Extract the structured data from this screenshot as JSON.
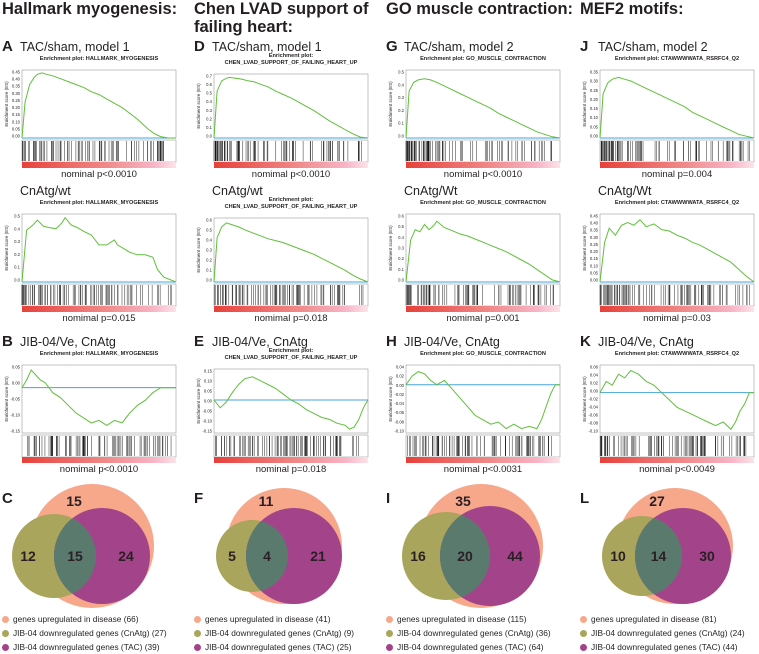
{
  "colors": {
    "es_line": "#5fbf3a",
    "zero_line": "#4aa3d8",
    "bar_red": "#e8403a",
    "bar_pink": "#f7b4c5",
    "venn_disease": "#f7a88a",
    "venn_cnatg": "#a9a55c",
    "venn_tac": "#a3438a",
    "venn_overlap": "#5b7a6e",
    "text": "#231f20"
  },
  "columns": [
    {
      "title": "Hallmark myogenesis:",
      "panels": [
        {
          "letter": "A",
          "subtitle": "TAC/sham, model 1",
          "plot_title": "Enrichment plot: HALLMARK_MYOGENESIS",
          "y_axis": "Enrichment score (ES)",
          "yticks": [
            "0.45",
            "0.40",
            "0.35",
            "0.30",
            "0.25",
            "0.20",
            "0.15",
            "0.10",
            "0.05",
            "0.00"
          ],
          "pvalue": "nominal p<0.0010"
        },
        {
          "letter": "",
          "subtitle": "CnAtg/wt",
          "plot_title": "Enrichment plot: HALLMARK_MYOGENESIS",
          "y_axis": "Enrichment score (ES)",
          "yticks": [
            "0.5",
            "0.4",
            "0.3",
            "0.2",
            "0.1",
            "0.0"
          ],
          "pvalue": "nomimal p=0.015"
        },
        {
          "letter": "B",
          "subtitle": "JIB-04/Ve, CnAtg",
          "plot_title": "Enrichment plot: HALLMARK_MYOGENESIS",
          "y_axis": "Enrichment score (ES)",
          "yticks": [
            "0.05",
            "0.00",
            "-0.05",
            "-0.10",
            "-0.15"
          ],
          "pvalue": "nomimal p<0.0010"
        }
      ],
      "venn": {
        "letter": "C",
        "only_disease": "15",
        "only_cnatg": "12",
        "triple": "15",
        "tac": "24"
      },
      "legend": [
        "genes upregulated in disease (66)",
        "JIB-04 downregulated genes (CnAtg) (27)",
        "JIB-04 downregulated genes (TAC) (39)"
      ]
    },
    {
      "title": "Chen LVAD support of\nfailing heart:",
      "panels": [
        {
          "letter": "D",
          "subtitle": "TAC/sham, model 1",
          "plot_title": "Enrichment plot:\nCHEN_LVAD_SUPPORT_OF_FAILING_HEART_UP",
          "y_axis": "Enrichment score (ES)",
          "yticks": [
            "0.7",
            "0.6",
            "0.5",
            "0.4",
            "0.3",
            "0.2",
            "0.1",
            "0.0"
          ],
          "pvalue": "nomimal p<0.0010"
        },
        {
          "letter": "",
          "subtitle": "CnAtg/wt",
          "plot_title": "Enrichment plot:\nCHEN_LVAD_SUPPORT_OF_FAILING_HEART_UP",
          "y_axis": "Enrichment score (ES)",
          "yticks": [
            "0.6",
            "0.5",
            "0.4",
            "0.3",
            "0.2",
            "0.1",
            "0.0"
          ],
          "pvalue": "nomimal p=0.018"
        },
        {
          "letter": "E",
          "subtitle": "JIB-04/Ve, CnAtg",
          "plot_title": "Enrichment plot:\nCHEN_LVAD_SUPPORT_OF_FAILING_HEART_UP",
          "y_axis": "Enrichment score (ES)",
          "yticks": [
            "0.15",
            "0.10",
            "0.05",
            "0.00",
            "-0.05",
            "-0.10",
            "-0.15"
          ],
          "pvalue": "nominal p=0.018"
        }
      ],
      "venn": {
        "letter": "F",
        "only_disease": "11",
        "only_cnatg": "5",
        "triple": "4",
        "tac": "21"
      },
      "legend": [
        "genes upregulated in disease (41)",
        "JIB-04 downregulated genes (CnAtg) (9)",
        "JIB-04 downregulated genes (TAC) (25)"
      ]
    },
    {
      "title": "GO muscle contraction:",
      "panels": [
        {
          "letter": "G",
          "subtitle": "TAC/sham, model 2",
          "plot_title": "Enrichment plot: GO_MUSCLE_CONTRACTION",
          "y_axis": "Enrichment score (ES)",
          "yticks": [
            "0.5",
            "0.4",
            "0.3",
            "0.2",
            "0.1",
            "0.0"
          ],
          "pvalue": "nomimal p<0.0010"
        },
        {
          "letter": "",
          "subtitle": "CnAtg/Wt",
          "plot_title": "Enrichment plot: GO_MUSCLE_CONTRACTION",
          "y_axis": "Enrichment score (ES)",
          "yticks": [
            "0.6",
            "0.5",
            "0.4",
            "0.3",
            "0.2",
            "0.1",
            "0.0"
          ],
          "pvalue": "nomimal p=0.001"
        },
        {
          "letter": "H",
          "subtitle": "JIB-04/Ve, CnAtg",
          "plot_title": "Enrichment plot: GO_MUSCLE_CONTRACTION",
          "y_axis": "Enrichment score (ES)",
          "yticks": [
            "0.04",
            "0.02",
            "0.00",
            "-0.02",
            "-0.04",
            "-0.06",
            "-0.08",
            "-0.10"
          ],
          "pvalue": "nomimal p<0.0031"
        }
      ],
      "venn": {
        "letter": "I",
        "only_disease": "35",
        "only_cnatg": "16",
        "triple": "20",
        "tac": "44"
      },
      "legend": [
        "genes upregulated in disease (115)",
        "JIB-04 downregulated genes (CnAtg) (36)",
        "JIB-04 downregulated genes (TAC) (64)"
      ]
    },
    {
      "title": "MEF2 motifs:",
      "panels": [
        {
          "letter": "J",
          "subtitle": "TAC/sham, model 2",
          "plot_title": "Enrichment plot: CTAWWWWATA_RSRFC4_Q2",
          "y_axis": "Enrichment score (ES)",
          "yticks": [
            "0.35",
            "0.30",
            "0.25",
            "0.20",
            "0.15",
            "0.10",
            "0.05",
            "0.00"
          ],
          "pvalue": "nominal p=0.004"
        },
        {
          "letter": "",
          "subtitle": "CnAtg/Wt",
          "plot_title": "Enrichment plot: CTAWWWWATA_RSRFC4_Q2",
          "y_axis": "Enrichment score (ES)",
          "yticks": [
            "0.45",
            "0.40",
            "0.35",
            "0.30",
            "0.25",
            "0.20",
            "0.15",
            "0.10",
            "0.05",
            "0.00"
          ],
          "pvalue": "nomimal p=0.03"
        },
        {
          "letter": "K",
          "subtitle": "JIB-04/Ve, CnAtg",
          "plot_title": "Enrichment plot: CTAWWWWATA_RSRFC4_Q2",
          "y_axis": "Enrichment score (ES)",
          "yticks": [
            "0.06",
            "0.04",
            "0.02",
            "0.00",
            "-0.02",
            "-0.04",
            "-0.06",
            "-0.08",
            "-0.10"
          ],
          "pvalue": "nominal p<0.0049"
        }
      ],
      "venn": {
        "letter": "L",
        "only_disease": "27",
        "only_cnatg": "10",
        "triple": "14",
        "tac": "30"
      },
      "legend": [
        "genes upregulated in disease (81)",
        "JIB-04 downregulated genes (CnAtg) (24)",
        "JIB-04 downregulated genes (TAC) (44)"
      ]
    }
  ],
  "chart_data": {
    "type": "gsea_enrichment_and_venn",
    "x_range": [
      0,
      1
    ],
    "curves": [
      [
        {
          "es_range": [
            0,
            0.47
          ],
          "xs": [
            0,
            0.02,
            0.05,
            0.08,
            0.1,
            0.13,
            0.16,
            0.2,
            0.25,
            0.3,
            0.35,
            0.4,
            0.45,
            0.5,
            0.55,
            0.6,
            0.65,
            0.7,
            0.75,
            0.78,
            0.82,
            0.86,
            0.9,
            0.95,
            1
          ],
          "es": [
            0,
            0.25,
            0.37,
            0.42,
            0.44,
            0.45,
            0.44,
            0.43,
            0.41,
            0.39,
            0.37,
            0.35,
            0.32,
            0.3,
            0.27,
            0.24,
            0.21,
            0.17,
            0.13,
            0.1,
            0.06,
            0.03,
            0.01,
            0.0,
            0
          ]
        },
        {
          "es_range": [
            0,
            0.55
          ],
          "xs": [
            0,
            0.03,
            0.07,
            0.1,
            0.14,
            0.18,
            0.22,
            0.26,
            0.28,
            0.32,
            0.36,
            0.4,
            0.45,
            0.5,
            0.55,
            0.6,
            0.62,
            0.66,
            0.7,
            0.75,
            0.8,
            0.85,
            0.88,
            0.92,
            1
          ],
          "es": [
            0,
            0.42,
            0.46,
            0.5,
            0.45,
            0.44,
            0.43,
            0.48,
            0.52,
            0.46,
            0.44,
            0.41,
            0.38,
            0.3,
            0.3,
            0.34,
            0.3,
            0.27,
            0.24,
            0.22,
            0.22,
            0.2,
            0.1,
            0.04,
            0
          ]
        },
        {
          "es_range": [
            -0.18,
            0.09
          ],
          "xs": [
            0,
            0.03,
            0.06,
            0.09,
            0.12,
            0.15,
            0.2,
            0.25,
            0.3,
            0.35,
            0.4,
            0.45,
            0.5,
            0.55,
            0.6,
            0.65,
            0.7,
            0.75,
            0.8,
            0.85,
            0.9,
            0.95,
            1
          ],
          "es": [
            0,
            0.03,
            0.07,
            0.05,
            0.03,
            0.02,
            -0.02,
            -0.04,
            -0.07,
            -0.1,
            -0.12,
            -0.14,
            -0.13,
            -0.15,
            -0.13,
            -0.14,
            -0.1,
            -0.07,
            -0.05,
            -0.02,
            0.0,
            0.0,
            0
          ]
        }
      ],
      [
        {
          "es_range": [
            0,
            0.75
          ],
          "xs": [
            0,
            0.02,
            0.05,
            0.08,
            0.1,
            0.14,
            0.18,
            0.22,
            0.26,
            0.3,
            0.35,
            0.4,
            0.45,
            0.5,
            0.55,
            0.6,
            0.65,
            0.7,
            0.75,
            0.8,
            0.85,
            0.9,
            0.95,
            1
          ],
          "es": [
            0,
            0.55,
            0.67,
            0.7,
            0.71,
            0.7,
            0.69,
            0.67,
            0.66,
            0.63,
            0.6,
            0.55,
            0.51,
            0.47,
            0.42,
            0.37,
            0.32,
            0.26,
            0.2,
            0.15,
            0.1,
            0.05,
            0.01,
            0
          ]
        },
        {
          "es_range": [
            0,
            0.65
          ],
          "xs": [
            0,
            0.02,
            0.05,
            0.08,
            0.12,
            0.16,
            0.2,
            0.25,
            0.3,
            0.35,
            0.4,
            0.45,
            0.5,
            0.55,
            0.6,
            0.65,
            0.7,
            0.75,
            0.8,
            0.85,
            0.9,
            0.95,
            1
          ],
          "es": [
            0,
            0.45,
            0.56,
            0.6,
            0.58,
            0.56,
            0.53,
            0.5,
            0.47,
            0.44,
            0.42,
            0.4,
            0.37,
            0.34,
            0.31,
            0.28,
            0.24,
            0.2,
            0.16,
            0.12,
            0.07,
            0.03,
            0
          ]
        },
        {
          "es_range": [
            -0.17,
            0.16
          ],
          "xs": [
            0,
            0.04,
            0.08,
            0.12,
            0.16,
            0.2,
            0.25,
            0.3,
            0.35,
            0.4,
            0.45,
            0.5,
            0.55,
            0.6,
            0.65,
            0.7,
            0.75,
            0.8,
            0.85,
            0.88,
            0.91,
            0.94,
            0.97,
            1
          ],
          "es": [
            0,
            -0.04,
            -0.01,
            0.04,
            0.08,
            0.11,
            0.12,
            0.1,
            0.08,
            0.06,
            0.03,
            0.0,
            -0.02,
            -0.05,
            -0.07,
            -0.09,
            -0.1,
            -0.12,
            -0.13,
            -0.15,
            -0.14,
            -0.1,
            -0.04,
            0
          ]
        }
      ],
      [
        {
          "es_range": [
            0,
            0.55
          ],
          "xs": [
            0,
            0.02,
            0.05,
            0.08,
            0.12,
            0.16,
            0.2,
            0.25,
            0.3,
            0.35,
            0.4,
            0.45,
            0.5,
            0.55,
            0.6,
            0.65,
            0.7,
            0.75,
            0.8,
            0.85,
            0.9,
            0.95,
            1
          ],
          "es": [
            0,
            0.38,
            0.45,
            0.47,
            0.48,
            0.47,
            0.45,
            0.42,
            0.39,
            0.36,
            0.33,
            0.3,
            0.27,
            0.24,
            0.2,
            0.17,
            0.14,
            0.11,
            0.08,
            0.05,
            0.03,
            0.01,
            0
          ]
        },
        {
          "es_range": [
            0,
            0.65
          ],
          "xs": [
            0,
            0.03,
            0.06,
            0.09,
            0.12,
            0.15,
            0.18,
            0.2,
            0.25,
            0.3,
            0.35,
            0.4,
            0.45,
            0.5,
            0.55,
            0.6,
            0.65,
            0.7,
            0.75,
            0.8,
            0.85,
            0.9,
            0.95,
            1
          ],
          "es": [
            0,
            0.4,
            0.5,
            0.48,
            0.55,
            0.5,
            0.54,
            0.58,
            0.52,
            0.49,
            0.46,
            0.44,
            0.41,
            0.38,
            0.35,
            0.32,
            0.29,
            0.25,
            0.21,
            0.17,
            0.12,
            0.07,
            0.02,
            0
          ]
        },
        {
          "es_range": [
            -0.11,
            0.045
          ],
          "xs": [
            0,
            0.04,
            0.08,
            0.12,
            0.16,
            0.2,
            0.25,
            0.3,
            0.35,
            0.4,
            0.45,
            0.5,
            0.55,
            0.6,
            0.65,
            0.7,
            0.75,
            0.8,
            0.85,
            0.88,
            0.91,
            0.94,
            0.97,
            1
          ],
          "es": [
            0,
            0.02,
            0.03,
            0.025,
            0.01,
            0.0,
            0.01,
            -0.01,
            -0.03,
            -0.05,
            -0.07,
            -0.08,
            -0.09,
            -0.085,
            -0.1,
            -0.09,
            -0.1,
            -0.095,
            -0.1,
            -0.08,
            -0.05,
            -0.02,
            0.0,
            0
          ]
        }
      ],
      [
        {
          "es_range": [
            0,
            0.37
          ],
          "xs": [
            0,
            0.02,
            0.05,
            0.08,
            0.12,
            0.16,
            0.2,
            0.25,
            0.3,
            0.35,
            0.4,
            0.45,
            0.5,
            0.55,
            0.6,
            0.65,
            0.7,
            0.75,
            0.8,
            0.85,
            0.9,
            0.95,
            1
          ],
          "es": [
            0,
            0.24,
            0.3,
            0.32,
            0.33,
            0.32,
            0.31,
            0.29,
            0.27,
            0.25,
            0.23,
            0.21,
            0.19,
            0.17,
            0.14,
            0.12,
            0.1,
            0.08,
            0.06,
            0.04,
            0.02,
            0.01,
            0
          ]
        },
        {
          "es_range": [
            0,
            0.48
          ],
          "xs": [
            0,
            0.03,
            0.06,
            0.1,
            0.14,
            0.18,
            0.22,
            0.26,
            0.3,
            0.35,
            0.4,
            0.45,
            0.5,
            0.55,
            0.6,
            0.65,
            0.7,
            0.75,
            0.8,
            0.85,
            0.9,
            0.95,
            1
          ],
          "es": [
            0,
            0.28,
            0.38,
            0.33,
            0.4,
            0.42,
            0.4,
            0.44,
            0.39,
            0.41,
            0.37,
            0.36,
            0.33,
            0.31,
            0.28,
            0.26,
            0.23,
            0.2,
            0.17,
            0.14,
            0.09,
            0.04,
            0
          ]
        },
        {
          "es_range": [
            -0.11,
            0.075
          ],
          "xs": [
            0,
            0.04,
            0.08,
            0.12,
            0.16,
            0.2,
            0.25,
            0.3,
            0.35,
            0.4,
            0.45,
            0.5,
            0.55,
            0.6,
            0.65,
            0.7,
            0.75,
            0.8,
            0.85,
            0.88,
            0.91,
            0.94,
            0.97,
            1
          ],
          "es": [
            0,
            0.03,
            0.02,
            0.05,
            0.04,
            0.06,
            0.05,
            0.03,
            0.02,
            0.0,
            -0.02,
            -0.04,
            -0.05,
            -0.06,
            -0.07,
            -0.08,
            -0.09,
            -0.08,
            -0.1,
            -0.08,
            -0.05,
            -0.03,
            0.0,
            0
          ]
        }
      ]
    ]
  }
}
